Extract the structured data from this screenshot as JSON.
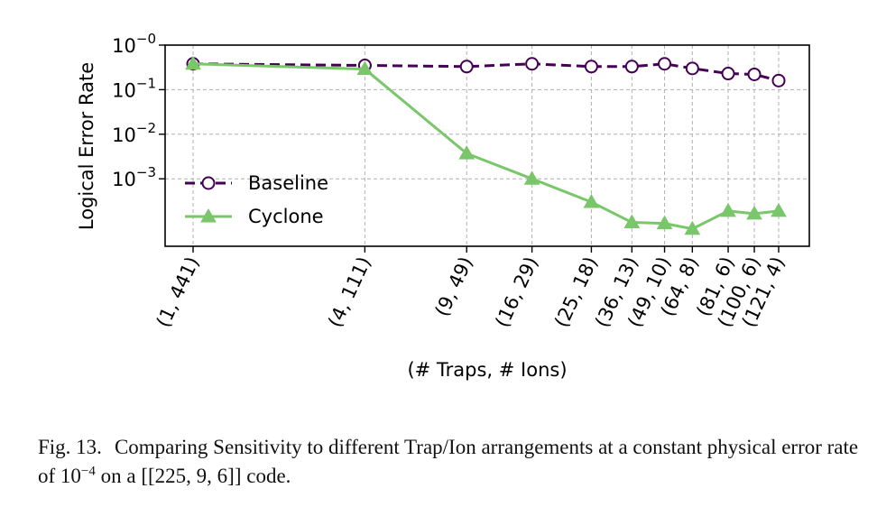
{
  "chart_data": {
    "type": "line",
    "ylabel": "Logical Error Rate",
    "xlabel": "(# Traps, # Ions)",
    "yscale": "log",
    "ylim": [
      3.06e-05,
      1.0
    ],
    "grid": true,
    "legend_position": "center-left",
    "y_ticks": [
      {
        "value": 1,
        "base": "10",
        "exp": "−0"
      },
      {
        "value": 0.1,
        "base": "10",
        "exp": "−1"
      },
      {
        "value": 0.01,
        "base": "10",
        "exp": "−2"
      },
      {
        "value": 0.001,
        "base": "10",
        "exp": "−3"
      }
    ],
    "x": [
      441,
      111,
      49,
      29,
      18,
      13,
      10,
      8,
      6,
      6,
      4
    ],
    "categories": [
      "(1, 441)",
      "(4, 111)",
      "(9, 49)",
      "(16, 29)",
      "(25, 18)",
      "(36, 13)",
      "(49, 10)",
      "(64, 8)",
      "(81, 6)",
      "(100, 6)",
      "(121, 4)"
    ],
    "series": [
      {
        "name": "Baseline",
        "color": "#440154",
        "linestyle": "dashed",
        "marker": "circle-open",
        "values": [
          0.38,
          0.35,
          0.33,
          0.38,
          0.33,
          0.33,
          0.38,
          0.3,
          0.23,
          0.22,
          0.16
        ]
      },
      {
        "name": "Cyclone",
        "color": "#7ac66a",
        "linestyle": "solid",
        "marker": "triangle-filled",
        "values": [
          0.38,
          0.29,
          0.0037,
          0.001,
          0.0003,
          0.000105,
          0.0001,
          7.5e-05,
          0.00019,
          0.000165,
          0.00019
        ]
      }
    ]
  },
  "caption": {
    "label": "Fig. 13.",
    "text_before": "Comparing Sensitivity to different Trap/Ion arrangements at a constant physical error rate of 10",
    "exponent": "−4",
    "text_after": " on a [[225, 9, 6]] code."
  }
}
